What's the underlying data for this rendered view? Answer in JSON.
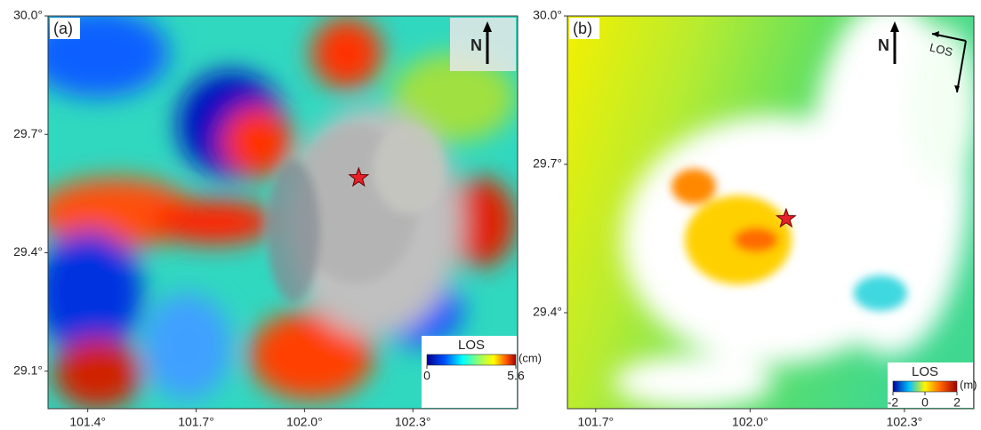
{
  "chart_data": [
    {
      "type": "map",
      "panel_label": "(a)",
      "xlim": [
        101.29,
        102.59
      ],
      "ylim": [
        29.005,
        30.0
      ],
      "xticks": [
        {
          "value": 101.4,
          "label": "101.4°"
        },
        {
          "value": 101.7,
          "label": "101.7°"
        },
        {
          "value": 102.0,
          "label": "102.0°"
        },
        {
          "value": 102.3,
          "label": "102.3°"
        }
      ],
      "yticks": [
        {
          "value": 29.1,
          "label": "29.1°"
        },
        {
          "value": 29.4,
          "label": "29.4°"
        },
        {
          "value": 29.7,
          "label": "29.7°"
        },
        {
          "value": 30.0,
          "label": "30.0°"
        }
      ],
      "epicenter": [
        102.15,
        29.59
      ],
      "north_label": "N",
      "colorbar": {
        "title": "LOS",
        "unit": "(cm)",
        "ticks": [
          0,
          5.6
        ]
      }
    },
    {
      "type": "map",
      "panel_label": "(b)",
      "xlim": [
        101.645,
        102.435
      ],
      "ylim": [
        29.206,
        30.0
      ],
      "xticks": [
        {
          "value": 101.7,
          "label": "101.7°"
        },
        {
          "value": 102.0,
          "label": "102.0°"
        },
        {
          "value": 102.3,
          "label": "102.3°"
        }
      ],
      "yticks": [
        {
          "value": 29.4,
          "label": "29.4°"
        },
        {
          "value": 29.7,
          "label": "29.7°"
        },
        {
          "value": 30.0,
          "label": "30.0°"
        }
      ],
      "epicenter": [
        102.07,
        29.59
      ],
      "north_label": "N",
      "los_label": "LOS",
      "colorbar": {
        "title": "LOS",
        "unit": "(m)",
        "ticks": [
          -2,
          0,
          2
        ]
      }
    }
  ]
}
